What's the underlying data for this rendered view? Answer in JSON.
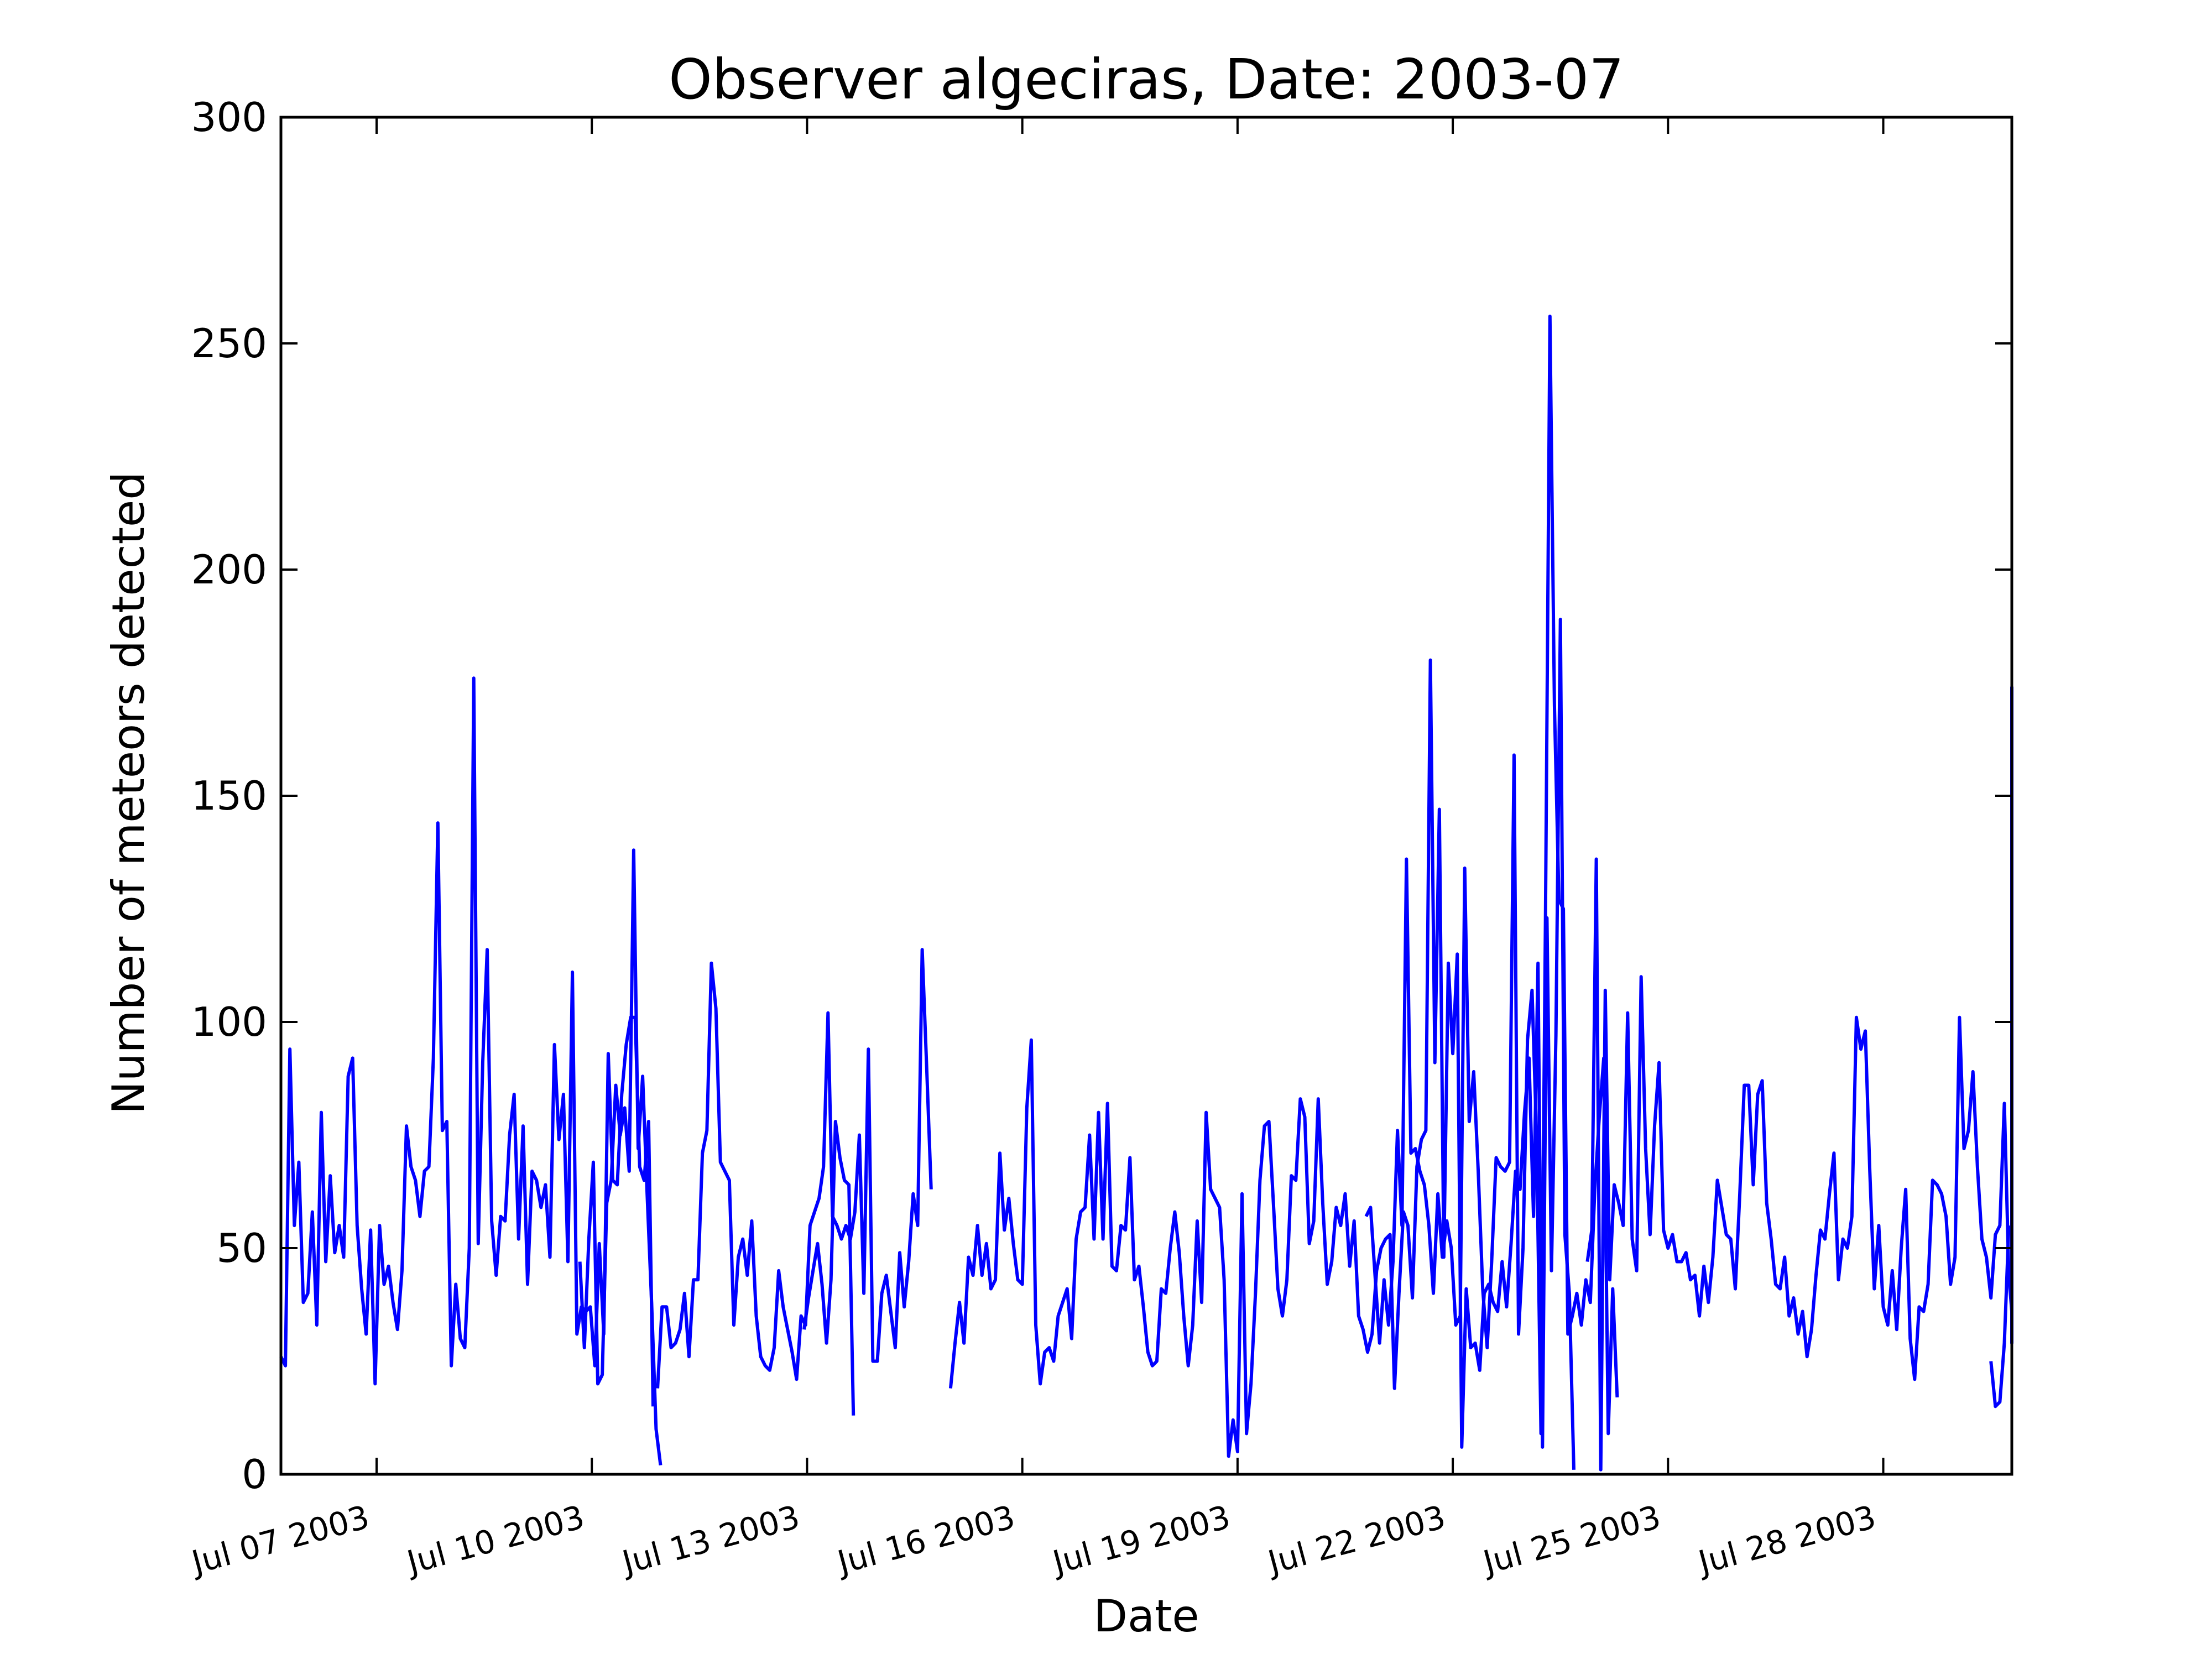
{
  "chart_data": {
    "type": "line",
    "title": "Observer algeciras, Date: 2003-07",
    "xlabel": "Date",
    "ylabel": "Number of meteors detected",
    "xlim": [
      "2003-07-05T16:00",
      "2003-07-29T19:00"
    ],
    "ylim": [
      0,
      300
    ],
    "y_ticks": [
      0,
      50,
      100,
      150,
      200,
      250,
      300
    ],
    "x_ticks": [
      {
        "date": "2003-07-07",
        "label": "Jul 07 2003"
      },
      {
        "date": "2003-07-10",
        "label": "Jul 10 2003"
      },
      {
        "date": "2003-07-13",
        "label": "Jul 13 2003"
      },
      {
        "date": "2003-07-16",
        "label": "Jul 16 2003"
      },
      {
        "date": "2003-07-19",
        "label": "Jul 19 2003"
      },
      {
        "date": "2003-07-22",
        "label": "Jul 22 2003"
      },
      {
        "date": "2003-07-25",
        "label": "Jul 25 2003"
      },
      {
        "date": "2003-07-28",
        "label": "Jul 28 2003"
      }
    ],
    "grid": false,
    "line_color": "#0000ff",
    "segments": [
      {
        "start": "2003-07-05T16:00",
        "interval_hours": 1.5,
        "values": [
          26,
          24,
          94,
          55,
          69,
          38,
          40,
          58,
          33,
          80,
          47,
          66,
          49,
          55,
          48,
          88,
          92,
          55,
          41,
          31,
          54,
          20,
          55,
          42,
          46,
          38,
          32,
          45,
          77,
          68,
          65,
          57,
          67,
          68,
          92,
          144,
          76,
          78,
          24,
          42,
          30,
          28,
          50,
          176,
          51,
          91,
          116,
          56,
          44,
          57,
          56,
          75,
          84,
          52,
          77,
          42,
          67,
          65,
          59,
          64,
          48,
          95,
          74,
          84,
          47,
          111,
          31,
          37,
          36,
          37,
          24,
          51,
          31,
          93,
          65,
          64,
          84,
          95,
          101,
          101,
          68,
          65,
          78,
          15
        ]
      },
      {
        "start": "2003-07-09T20:00",
        "interval_hours": 1.5,
        "values": [
          47,
          28,
          52,
          69,
          20,
          22,
          60,
          65,
          86,
          75,
          81,
          67,
          138,
          72,
          88,
          62,
          38,
          10,
          2
        ]
      },
      {
        "start": "2003-07-10T22:00",
        "interval_hours": 1.5,
        "values": [
          19,
          37,
          37,
          28,
          29,
          32,
          40,
          26,
          43,
          43,
          71,
          76,
          113,
          103,
          69,
          67,
          65,
          33,
          48,
          52,
          44,
          56,
          35,
          26,
          24,
          23,
          28,
          45,
          37,
          32,
          27,
          21,
          35,
          33,
          55,
          58,
          61,
          68,
          102,
          57,
          55,
          52,
          55,
          52,
          58,
          75,
          40,
          94,
          25,
          25,
          40,
          44,
          36,
          28,
          49,
          37,
          47,
          62,
          55,
          116,
          90,
          63
        ]
      },
      {
        "start": "2003-07-12T23:00",
        "interval_hours": 1.5,
        "values": [
          32,
          39,
          45,
          51,
          42,
          29,
          43,
          78,
          70,
          65,
          64,
          13
        ]
      },
      {
        "start": "2003-07-15T00:00",
        "interval_hours": 1.5,
        "values": [
          19,
          29,
          38,
          29,
          48,
          44,
          55,
          44,
          51,
          41,
          43,
          71,
          54,
          61,
          51,
          43,
          42,
          81,
          96,
          33,
          20,
          27,
          28,
          25,
          35,
          38,
          41,
          30,
          52,
          58,
          59,
          75,
          52,
          80,
          52,
          82,
          46,
          45,
          55,
          54,
          70,
          43,
          46,
          37,
          27,
          24,
          25,
          41,
          40,
          50,
          58,
          49,
          35,
          24,
          33,
          56,
          38,
          80,
          63,
          61,
          59,
          43,
          4,
          12,
          5,
          62,
          9,
          20,
          40,
          65,
          77,
          78,
          60,
          41,
          35,
          43,
          66,
          65,
          83,
          79,
          51,
          56,
          83,
          60,
          42,
          47,
          59,
          55,
          62,
          46,
          56,
          35,
          32,
          27,
          31,
          45,
          50,
          52,
          53,
          19,
          40,
          58,
          55,
          39,
          68,
          74,
          76,
          180,
          91,
          147,
          48,
          113,
          93,
          115,
          6,
          41,
          28,
          29,
          23,
          40,
          42,
          38,
          36,
          47,
          37,
          51,
          67,
          63,
          80,
          92,
          57,
          113,
          6,
          123,
          45,
          97,
          189,
          53,
          40,
          1
        ]
      },
      {
        "start": "2003-07-20T19:00",
        "interval_hours": 1.5,
        "values": [
          57,
          59,
          44,
          29,
          43,
          33,
          47,
          76,
          55,
          136,
          71,
          72,
          67,
          64,
          55,
          40,
          62,
          48,
          56,
          50,
          33,
          35,
          134,
          78,
          89,
          67,
          41,
          28,
          47,
          70,
          68,
          67,
          69,
          159,
          31,
          50,
          96,
          107,
          75,
          9,
          123,
          256,
          170,
          127,
          125,
          31,
          35,
          40,
          33,
          43,
          38,
          63,
          79,
          92,
          9,
          41,
          17
        ]
      },
      {
        "start": "2003-07-23T21:00",
        "interval_hours": 1.5,
        "values": [
          47,
          54,
          136,
          1,
          107,
          43,
          64,
          60,
          55,
          102,
          52,
          45,
          110,
          72,
          53,
          77,
          91,
          54,
          50,
          53,
          47,
          47,
          49,
          43,
          44,
          35,
          46,
          38,
          48,
          65,
          59,
          53,
          52,
          41,
          62,
          86,
          86,
          64,
          84,
          87,
          60,
          52,
          42,
          41,
          48,
          35,
          39,
          31,
          36,
          26,
          32,
          44,
          54,
          52,
          62,
          71,
          43,
          52,
          50,
          57,
          101,
          94,
          98,
          67,
          41,
          55,
          37,
          33,
          45,
          32,
          50,
          63,
          30,
          21,
          37,
          36,
          42,
          65,
          64,
          62,
          57,
          42,
          48,
          101,
          72,
          76,
          89,
          68,
          52,
          48,
          39,
          53,
          55,
          82,
          44,
          36,
          29,
          86,
          90,
          174,
          109,
          85,
          75,
          63,
          51,
          72,
          90,
          87,
          59,
          59,
          40,
          74,
          52,
          49,
          46,
          67,
          33,
          74,
          97
        ]
      },
      {
        "start": "2003-07-29T12:00",
        "interval_hours": 1.5,
        "values": [
          25,
          15,
          16,
          29,
          55
        ]
      }
    ]
  }
}
